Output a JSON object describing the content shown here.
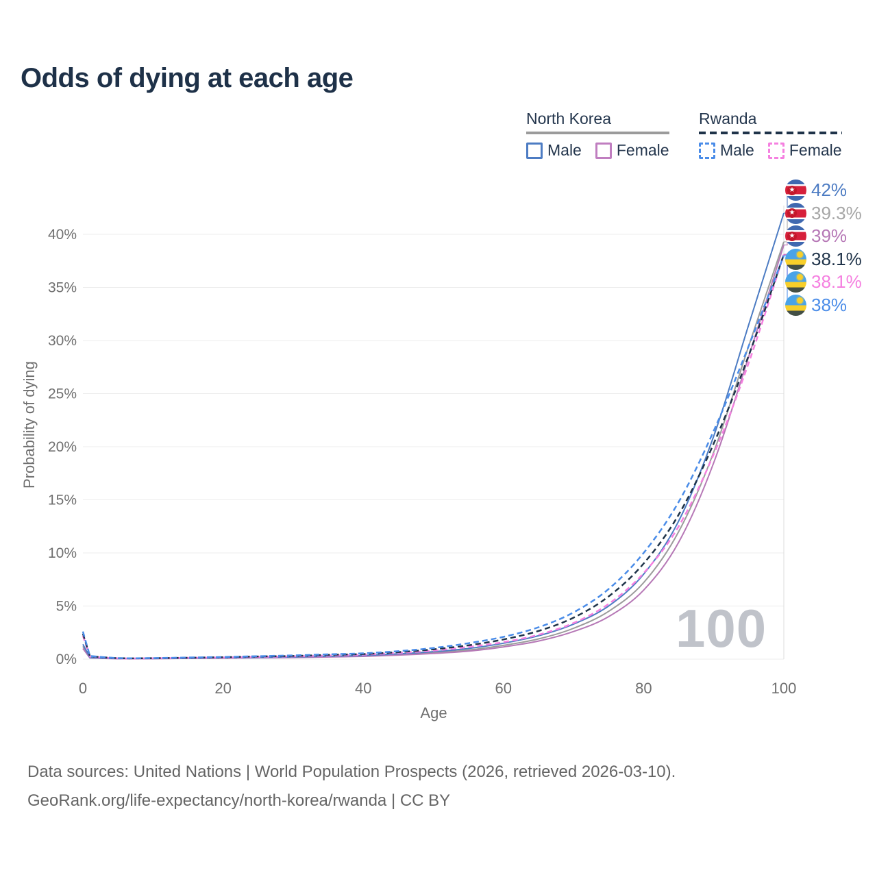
{
  "header": {
    "title": "Odds of dying at each age"
  },
  "legend": {
    "groups": [
      {
        "name": "North Korea",
        "line_style": "solid",
        "underline_color": "#9b9b9b",
        "items": [
          {
            "label": "Male",
            "color": "#4d7cc3"
          },
          {
            "label": "Female",
            "color": "#c07ec0"
          }
        ]
      },
      {
        "name": "Rwanda",
        "line_style": "dashed",
        "underline_color": "#1f3349",
        "items": [
          {
            "label": "Male",
            "color": "#4a8ce8"
          },
          {
            "label": "Female",
            "color": "#f580e0"
          }
        ]
      }
    ]
  },
  "chart_data": {
    "type": "line",
    "title": "Odds of dying at each age",
    "xlabel": "Age",
    "ylabel": "Probability of dying",
    "xlim": [
      0,
      100
    ],
    "ylim": [
      0,
      42.5
    ],
    "xticks": [
      0,
      20,
      40,
      60,
      80,
      100
    ],
    "yticks": [
      0,
      5,
      10,
      15,
      20,
      25,
      30,
      35,
      40
    ],
    "ytick_suffix": "%",
    "grid": "horizontal",
    "legend_position": "top-right",
    "hover_age_label": "100",
    "x": [
      0,
      1,
      5,
      10,
      15,
      20,
      25,
      30,
      35,
      40,
      45,
      50,
      55,
      60,
      65,
      70,
      75,
      80,
      85,
      90,
      95,
      100
    ],
    "series": [
      {
        "name": "North Korea Both sexes",
        "country": "North Korea",
        "sex": "both",
        "color": "#9b9b9b",
        "dash": "none",
        "width": 2,
        "values": [
          1.2,
          0.13,
          0.05,
          0.05,
          0.08,
          0.1,
          0.14,
          0.17,
          0.23,
          0.3,
          0.43,
          0.6,
          0.85,
          1.3,
          1.9,
          2.9,
          4.5,
          7.2,
          12.0,
          19.5,
          29.5,
          39.3
        ]
      },
      {
        "name": "North Korea Female",
        "country": "North Korea",
        "sex": "female",
        "color": "#b678b6",
        "dash": "none",
        "width": 2,
        "values": [
          1.0,
          0.11,
          0.04,
          0.04,
          0.07,
          0.09,
          0.12,
          0.15,
          0.2,
          0.26,
          0.38,
          0.53,
          0.75,
          1.15,
          1.7,
          2.6,
          4.0,
          6.5,
          11.0,
          18.5,
          28.5,
          39.0
        ]
      },
      {
        "name": "North Korea Male",
        "country": "North Korea",
        "sex": "male",
        "color": "#4d7cc3",
        "dash": "none",
        "width": 2,
        "values": [
          1.4,
          0.15,
          0.06,
          0.06,
          0.09,
          0.12,
          0.16,
          0.2,
          0.27,
          0.35,
          0.5,
          0.7,
          1.0,
          1.5,
          2.2,
          3.3,
          5.0,
          8.0,
          13.0,
          21.0,
          31.5,
          42.0
        ]
      },
      {
        "name": "Rwanda Female",
        "country": "Rwanda",
        "sex": "female",
        "color": "#f580e0",
        "dash": "8 5",
        "width": 2.5,
        "values": [
          2.2,
          0.24,
          0.08,
          0.08,
          0.12,
          0.15,
          0.21,
          0.26,
          0.33,
          0.42,
          0.58,
          0.8,
          1.15,
          1.6,
          2.3,
          3.4,
          5.2,
          8.1,
          12.5,
          19.3,
          27.9,
          38.1
        ]
      },
      {
        "name": "Rwanda Both sexes",
        "country": "Rwanda",
        "sex": "both",
        "color": "#1f3349",
        "dash": "8 5",
        "width": 2.5,
        "values": [
          2.4,
          0.27,
          0.09,
          0.09,
          0.13,
          0.18,
          0.25,
          0.3,
          0.4,
          0.48,
          0.66,
          0.92,
          1.3,
          1.85,
          2.65,
          3.9,
          5.9,
          9.0,
          13.6,
          20.3,
          28.6,
          38.1
        ]
      },
      {
        "name": "Rwanda Male",
        "country": "Rwanda",
        "sex": "male",
        "color": "#4a8ce8",
        "dash": "8 5",
        "width": 2.5,
        "values": [
          2.6,
          0.3,
          0.1,
          0.1,
          0.15,
          0.2,
          0.28,
          0.35,
          0.45,
          0.55,
          0.75,
          1.05,
          1.5,
          2.1,
          3.0,
          4.4,
          6.6,
          10.0,
          14.8,
          21.5,
          29.5,
          38.0
        ]
      }
    ],
    "endpoints": [
      {
        "label": "42%",
        "value": 42.0,
        "color": "#4d7cc3",
        "flag": "north-korea",
        "series": "North Korea Male"
      },
      {
        "label": "39.3%",
        "value": 39.3,
        "color": "#a6a6a6",
        "flag": "north-korea",
        "series": "North Korea Both sexes"
      },
      {
        "label": "39%",
        "value": 39.0,
        "color": "#b678b6",
        "flag": "north-korea",
        "series": "North Korea Female"
      },
      {
        "label": "38.1%",
        "value": 38.1,
        "color": "#1f3349",
        "flag": "rwanda",
        "series": "Rwanda Both sexes"
      },
      {
        "label": "38.1%",
        "value": 38.1,
        "color": "#f580e0",
        "flag": "rwanda",
        "series": "Rwanda Female"
      },
      {
        "label": "38%",
        "value": 38.0,
        "color": "#4a8ce8",
        "flag": "rwanda",
        "series": "Rwanda Male"
      }
    ]
  },
  "footer": {
    "line1": "Data sources: United Nations | World Population Prospects (2026, retrieved 2026-03-10).",
    "line2": "GeoRank.org/life-expectancy/north-korea/rwanda | CC BY"
  }
}
